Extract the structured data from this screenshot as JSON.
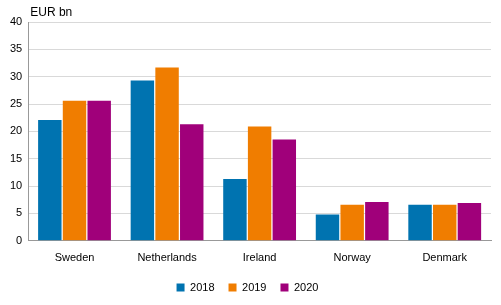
{
  "chart_data": {
    "type": "bar",
    "ylabel": "EUR bn",
    "categories": [
      "Sweden",
      "Netherlands",
      "Ireland",
      "Norway",
      "Denmark"
    ],
    "series": [
      {
        "name": "2018",
        "color": "#0073b0",
        "values": [
          22.1,
          29.3,
          11.3,
          4.8,
          6.6
        ]
      },
      {
        "name": "2019",
        "color": "#f07d00",
        "values": [
          25.6,
          31.7,
          20.9,
          6.6,
          6.6
        ]
      },
      {
        "name": "2020",
        "color": "#a0007a",
        "values": [
          25.6,
          21.3,
          18.5,
          7.1,
          6.9
        ]
      }
    ],
    "ylim": [
      0,
      40
    ],
    "yticks": [
      0,
      5,
      10,
      15,
      20,
      25,
      30,
      35,
      40
    ],
    "grid": true,
    "legend": "bottom"
  }
}
